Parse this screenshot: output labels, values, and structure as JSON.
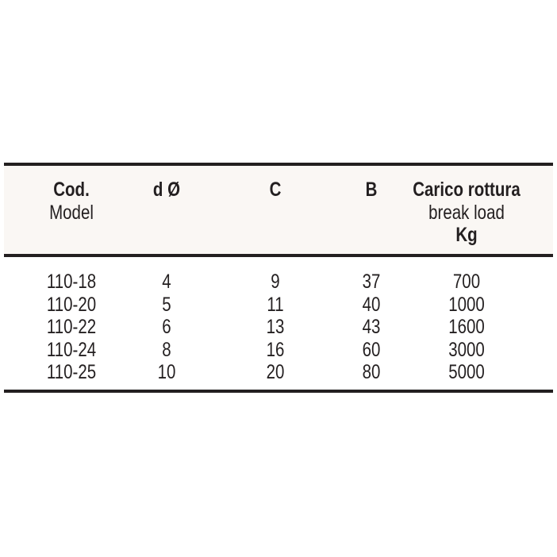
{
  "header": {
    "cod": "Cod.",
    "model": "Model",
    "d": "d Ø",
    "c": "C",
    "b": "B",
    "carico": "Carico rottura",
    "break_load": "break load",
    "kg": "Kg"
  },
  "rows": [
    {
      "cod": "110-18",
      "d": "4",
      "c": "9",
      "b": "37",
      "load": "700"
    },
    {
      "cod": "110-20",
      "d": "5",
      "c": "11",
      "b": "40",
      "load": "1000"
    },
    {
      "cod": "110-22",
      "d": "6",
      "c": "13",
      "b": "43",
      "load": "1600"
    },
    {
      "cod": "110-24",
      "d": "8",
      "c": "16",
      "b": "60",
      "load": "3000"
    },
    {
      "cod": "110-25",
      "d": "10",
      "c": "20",
      "b": "80",
      "load": "5000"
    }
  ]
}
